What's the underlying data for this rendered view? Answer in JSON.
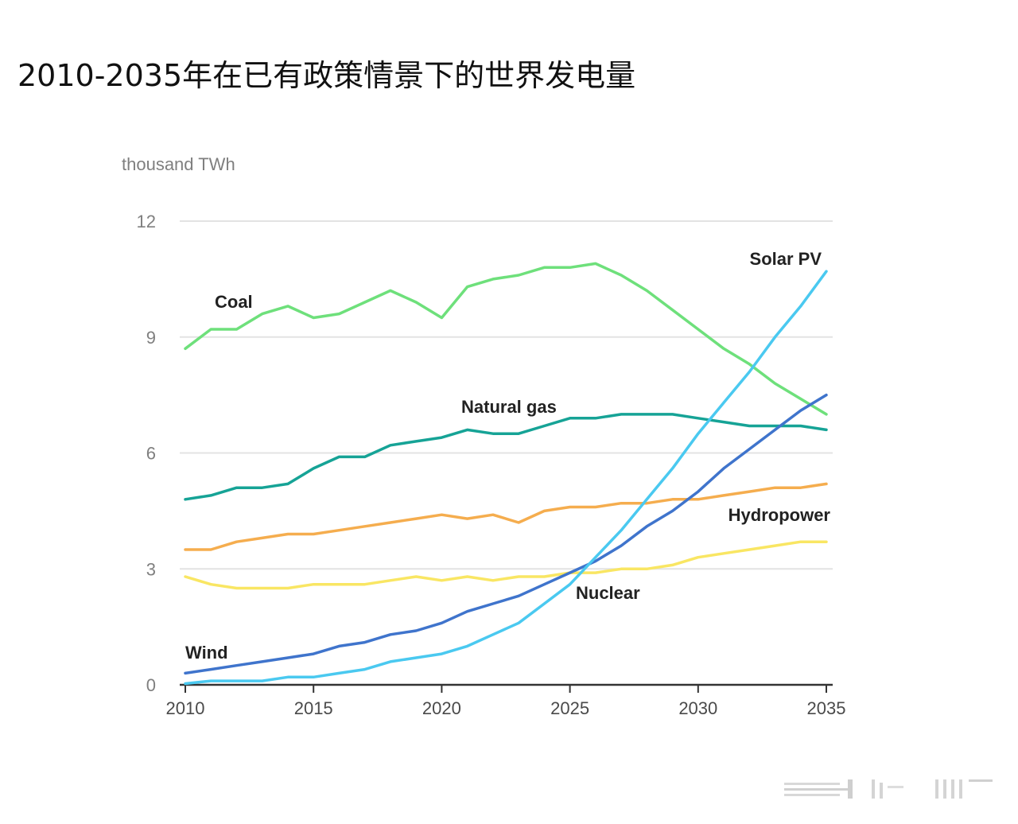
{
  "title": "2010-2035年在已有政策情景下的世界发电量",
  "chart_data": {
    "type": "line",
    "unit_label": "thousand TWh",
    "ylim": [
      0,
      12
    ],
    "xlim": [
      2010,
      2035
    ],
    "y_ticks": [
      0,
      3,
      6,
      9,
      12
    ],
    "x_ticks": [
      2010,
      2015,
      2020,
      2025,
      2030,
      2035
    ],
    "grid": true,
    "x": [
      2010,
      2011,
      2012,
      2013,
      2014,
      2015,
      2016,
      2017,
      2018,
      2019,
      2020,
      2021,
      2022,
      2023,
      2024,
      2025,
      2026,
      2027,
      2028,
      2029,
      2030,
      2031,
      2032,
      2033,
      2034,
      2035
    ],
    "series": [
      {
        "name": "Coal",
        "color": "#6ee07b",
        "values": [
          8.7,
          9.2,
          9.2,
          9.6,
          9.8,
          9.5,
          9.6,
          9.9,
          10.2,
          9.9,
          9.5,
          10.3,
          10.5,
          10.6,
          10.8,
          10.8,
          10.9,
          10.6,
          10.2,
          9.7,
          9.2,
          8.7,
          8.3,
          7.8,
          7.4,
          7.0
        ]
      },
      {
        "name": "Natural gas",
        "color": "#16a396",
        "values": [
          4.8,
          4.9,
          5.1,
          5.1,
          5.2,
          5.6,
          5.9,
          5.9,
          6.2,
          6.3,
          6.4,
          6.6,
          6.5,
          6.5,
          6.7,
          6.9,
          6.9,
          7.0,
          7.0,
          7.0,
          6.9,
          6.8,
          6.7,
          6.7,
          6.7,
          6.6
        ]
      },
      {
        "name": "Hydropower",
        "color": "#f5ad4e",
        "values": [
          3.5,
          3.5,
          3.7,
          3.8,
          3.9,
          3.9,
          4.0,
          4.1,
          4.2,
          4.3,
          4.4,
          4.3,
          4.4,
          4.2,
          4.5,
          4.6,
          4.6,
          4.7,
          4.7,
          4.8,
          4.8,
          4.9,
          5.0,
          5.1,
          5.1,
          5.2
        ]
      },
      {
        "name": "Nuclear",
        "color": "#f9e663",
        "values": [
          2.8,
          2.6,
          2.5,
          2.5,
          2.5,
          2.6,
          2.6,
          2.6,
          2.7,
          2.8,
          2.7,
          2.8,
          2.7,
          2.8,
          2.8,
          2.9,
          2.9,
          3.0,
          3.0,
          3.1,
          3.3,
          3.4,
          3.5,
          3.6,
          3.7,
          3.7
        ]
      },
      {
        "name": "Wind",
        "color": "#3f74cc",
        "values": [
          0.3,
          0.4,
          0.5,
          0.6,
          0.7,
          0.8,
          1.0,
          1.1,
          1.3,
          1.4,
          1.6,
          1.9,
          2.1,
          2.3,
          2.6,
          2.9,
          3.2,
          3.6,
          4.1,
          4.5,
          5.0,
          5.6,
          6.1,
          6.6,
          7.1,
          7.5
        ]
      },
      {
        "name": "Solar PV",
        "color": "#4ac9f0",
        "values": [
          0.03,
          0.1,
          0.1,
          0.1,
          0.2,
          0.2,
          0.3,
          0.4,
          0.6,
          0.7,
          0.8,
          1.0,
          1.3,
          1.6,
          2.1,
          2.6,
          3.3,
          4.0,
          4.8,
          5.6,
          6.5,
          7.3,
          8.1,
          9.0,
          9.8,
          10.7
        ]
      }
    ]
  }
}
